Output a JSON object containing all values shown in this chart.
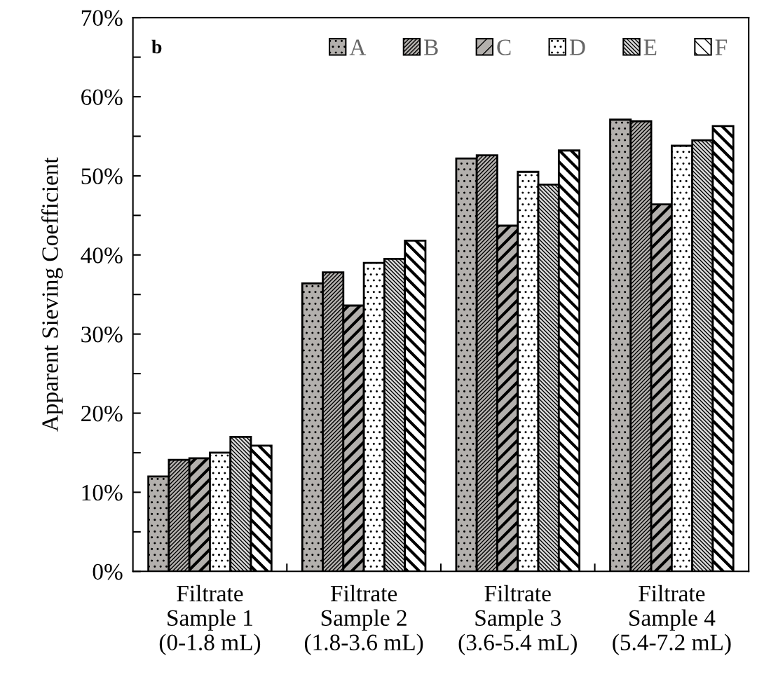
{
  "chart_data": {
    "type": "bar",
    "categories": [
      "Filtrate\nSample 1\n(0-1.8 mL)",
      "Filtrate\nSample 2\n(1.8-3.6 mL)",
      "Filtrate\nSample 3\n(3.6-5.4 mL)",
      "Filtrate\nSample 4\n(5.4-7.2 mL)"
    ],
    "ylabel": "Apparent Sieving Coefficient",
    "annotations": [
      "b"
    ],
    "series": [
      {
        "name": "A",
        "color": "#b3b0ad",
        "values": [
          12.0,
          36.4,
          52.2,
          57.1
        ]
      },
      {
        "name": "B",
        "color": "#b3b0ad",
        "values": [
          14.1,
          37.8,
          52.6,
          56.9
        ]
      },
      {
        "name": "C",
        "color": "#b3b0ad",
        "values": [
          14.3,
          33.6,
          43.7,
          46.4
        ]
      },
      {
        "name": "D",
        "color": "#ffffff",
        "values": [
          15.0,
          39.0,
          50.5,
          53.8
        ]
      },
      {
        "name": "E",
        "color": "#d9d9d9",
        "values": [
          17.0,
          39.5,
          48.9,
          54.5
        ]
      },
      {
        "name": "F",
        "color": "#ffffff",
        "values": [
          15.9,
          41.8,
          53.2,
          56.3
        ]
      }
    ],
    "ylim": [
      0,
      70
    ],
    "yticks": [
      {
        "value": 0,
        "label": "0%"
      },
      {
        "value": 5,
        "label": null
      },
      {
        "value": 10,
        "label": "10%"
      },
      {
        "value": 15,
        "label": null
      },
      {
        "value": 20,
        "label": "20%"
      },
      {
        "value": 25,
        "label": null
      },
      {
        "value": 30,
        "label": "30%"
      },
      {
        "value": 35,
        "label": null
      },
      {
        "value": 40,
        "label": "40%"
      },
      {
        "value": 45,
        "label": null
      },
      {
        "value": 50,
        "label": "50%"
      },
      {
        "value": 55,
        "label": null
      },
      {
        "value": 60,
        "label": "60%"
      },
      {
        "value": 65,
        "label": null
      },
      {
        "value": 70,
        "label": "70%"
      }
    ],
    "grid": false,
    "legend": "top"
  }
}
